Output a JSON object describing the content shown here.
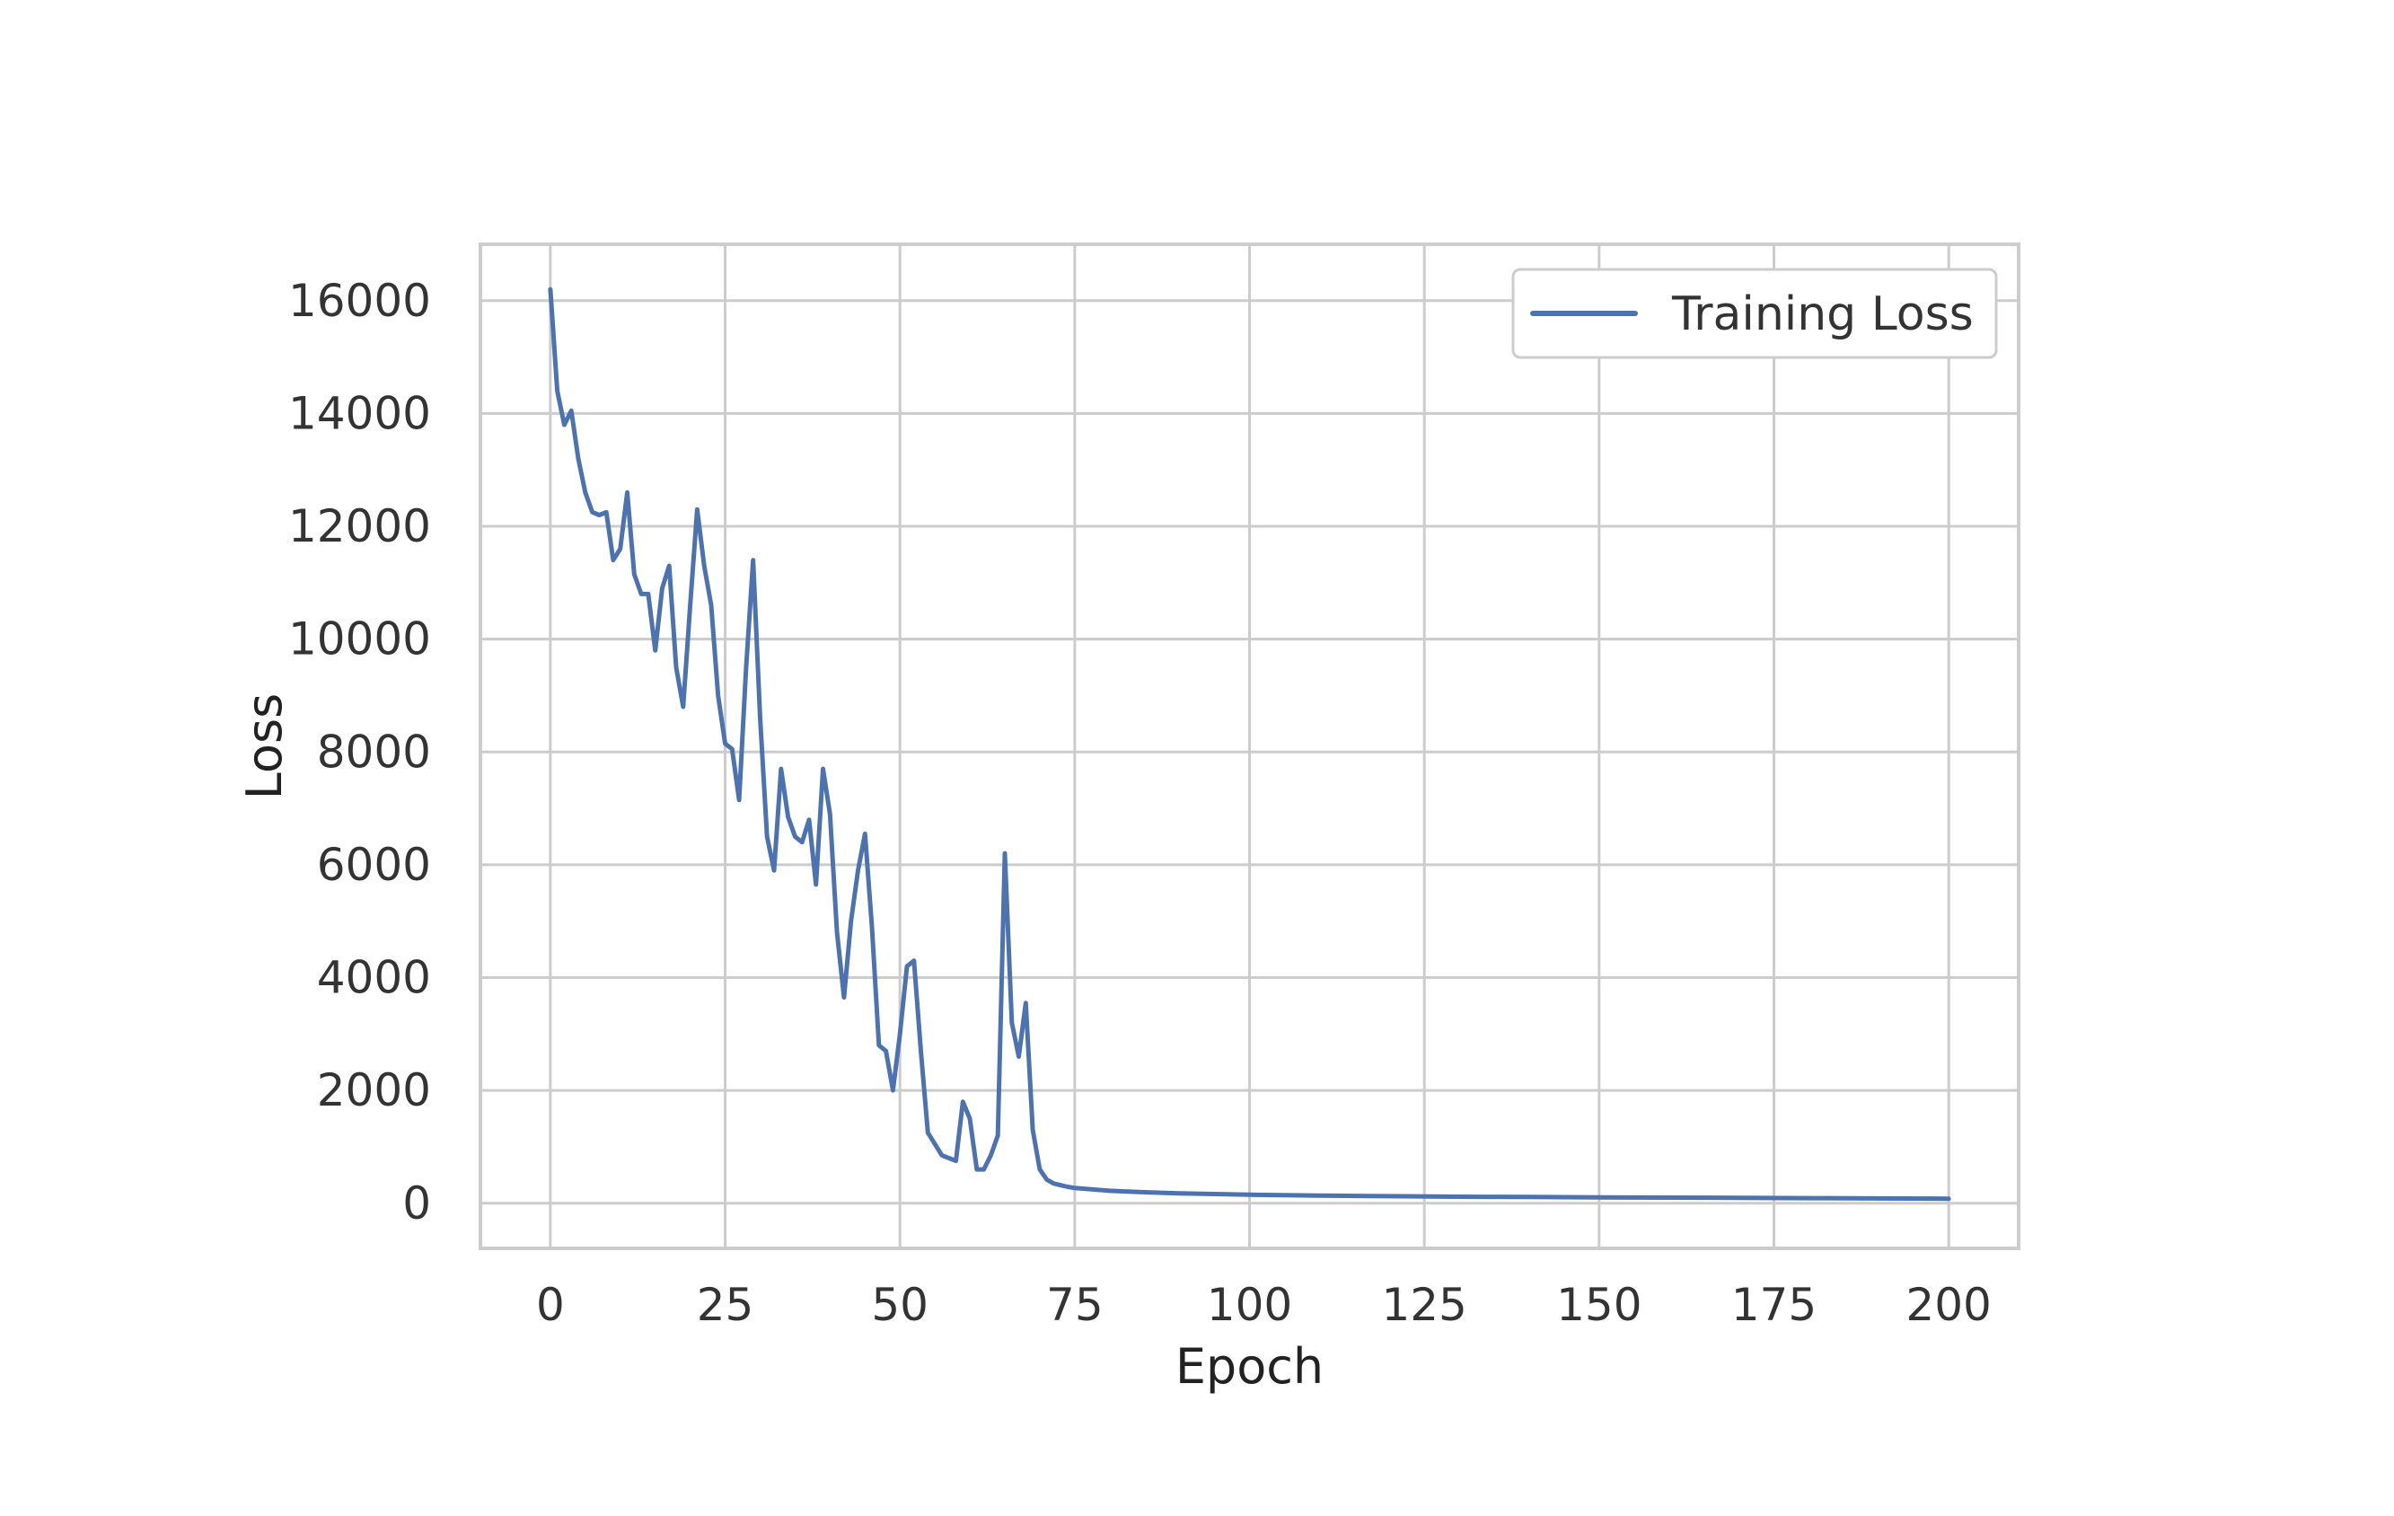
{
  "chart_data": {
    "type": "line",
    "xlabel": "Epoch",
    "ylabel": "Loss",
    "xlim": [
      -10,
      210
    ],
    "ylim": [
      -800,
      17000
    ],
    "xticks": [
      0,
      25,
      50,
      75,
      100,
      125,
      150,
      175,
      200
    ],
    "yticks": [
      0,
      2000,
      4000,
      6000,
      8000,
      10000,
      12000,
      14000,
      16000
    ],
    "grid": true,
    "legend_position": "top-right",
    "colors": {
      "series": "#4c72b0",
      "grid": "#cccccc",
      "frame": "#cccccc",
      "background": "#ffffff"
    },
    "series": [
      {
        "name": "Training Loss",
        "x": [
          0,
          1,
          2,
          3,
          4,
          5,
          6,
          7,
          8,
          9,
          10,
          11,
          12,
          13,
          14,
          15,
          16,
          17,
          18,
          19,
          20,
          21,
          22,
          23,
          24,
          25,
          26,
          27,
          28,
          29,
          30,
          31,
          32,
          33,
          34,
          35,
          36,
          37,
          38,
          39,
          40,
          41,
          42,
          43,
          44,
          45,
          46,
          47,
          48,
          49,
          50,
          51,
          52,
          53,
          54,
          55,
          56,
          57,
          58,
          59,
          60,
          61,
          62,
          63,
          64,
          65,
          66,
          67,
          68,
          69,
          70,
          71,
          72,
          73,
          74,
          75,
          80,
          85,
          90,
          100,
          110,
          120,
          130,
          140,
          150,
          160,
          170,
          180,
          190,
          200
        ],
        "y": [
          16200,
          14400,
          13800,
          14050,
          13200,
          12600,
          12250,
          12200,
          12250,
          11400,
          11600,
          12600,
          11150,
          10800,
          10800,
          9800,
          10900,
          11300,
          9500,
          8800,
          10600,
          12300,
          11300,
          10600,
          9000,
          8150,
          8050,
          7150,
          9500,
          11400,
          8600,
          6500,
          5900,
          7700,
          6850,
          6500,
          6400,
          6800,
          5650,
          7700,
          6900,
          4800,
          3650,
          5000,
          5900,
          6550,
          4900,
          2800,
          2700,
          2000,
          3000,
          4200,
          4300,
          2700,
          1250,
          1050,
          850,
          800,
          750,
          1800,
          1500,
          600,
          600,
          850,
          1200,
          6200,
          3200,
          2600,
          3550,
          1300,
          600,
          420,
          350,
          320,
          290,
          270,
          220,
          195,
          175,
          150,
          135,
          125,
          115,
          110,
          105,
          100,
          95,
          90,
          85,
          80
        ]
      }
    ]
  }
}
